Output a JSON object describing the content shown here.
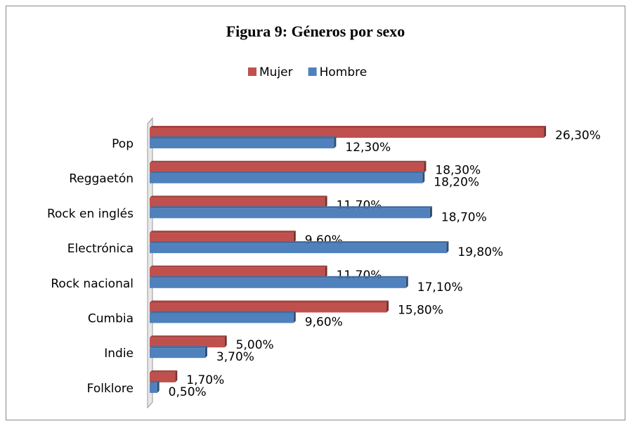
{
  "chart_data": {
    "type": "barh",
    "title": "Figura 9: Géneros por sexo",
    "categories": [
      "Pop",
      "Reggaetón",
      "Rock en inglés",
      "Electrónica",
      "Rock nacional",
      "Cumbia",
      "Indie",
      "Folklore"
    ],
    "series": [
      {
        "name": "Mujer",
        "color": "#c0504d",
        "values": [
          26.3,
          18.3,
          11.7,
          9.6,
          11.7,
          15.8,
          5.0,
          1.7
        ],
        "value_labels": [
          "26,30%",
          "18,30%",
          "11,70%",
          "9,60%",
          "11,70%",
          "15,80%",
          "5,00%",
          "1,70%"
        ]
      },
      {
        "name": "Hombre",
        "color": "#4f81bd",
        "values": [
          12.3,
          18.2,
          18.7,
          19.8,
          17.1,
          9.6,
          3.7,
          0.5
        ],
        "value_labels": [
          "12,30%",
          "18,20%",
          "18,70%",
          "19,80%",
          "17,10%",
          "9,60%",
          "3,70%",
          "0,50%"
        ]
      }
    ],
    "xlim": [
      0,
      30
    ],
    "legend": "top"
  }
}
